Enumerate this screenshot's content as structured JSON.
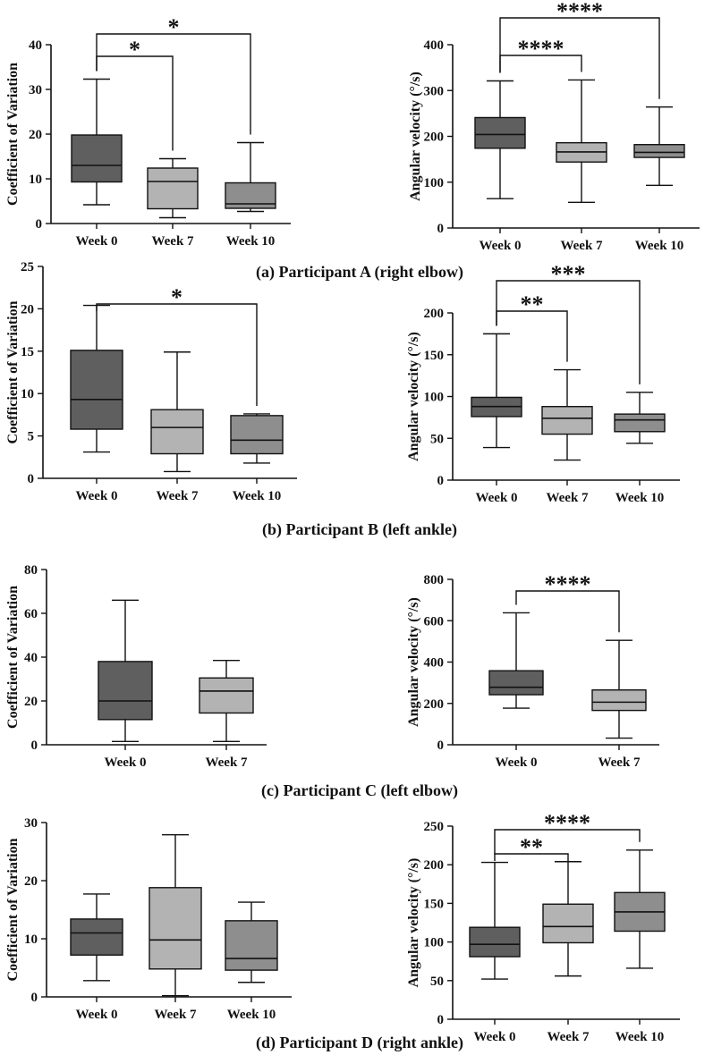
{
  "colors": {
    "week0": "#5f5f5f",
    "week7": "#b3b3b3",
    "week10": "#8e8e8e",
    "line": "#111111"
  },
  "chart_data": [
    {
      "type": "box",
      "caption": "(a) Participant A (right elbow)",
      "ylabel": "Coefficient of Variation",
      "ylim": [
        0,
        40
      ],
      "yticks": [
        0,
        10,
        20,
        30,
        40
      ],
      "categories": [
        "Week 0",
        "Week 7",
        "Week 10"
      ],
      "boxes": [
        {
          "min": 4.2,
          "q1": 9.3,
          "median": 13.0,
          "q3": 19.8,
          "max": 32.3
        },
        {
          "min": 1.3,
          "q1": 3.3,
          "median": 9.4,
          "q3": 12.4,
          "max": 14.5
        },
        {
          "min": 2.7,
          "q1": 3.4,
          "median": 4.4,
          "q3": 9.1,
          "max": 18.1
        }
      ],
      "significance": [
        {
          "from": 0,
          "to": 1,
          "label": "*"
        },
        {
          "from": 0,
          "to": 2,
          "label": "*"
        }
      ]
    },
    {
      "type": "box",
      "caption": "(a) Participant A (right elbow)",
      "ylabel": "Angular velocity (°/s)",
      "ylim": [
        0,
        400
      ],
      "yticks": [
        0,
        100,
        200,
        300,
        400
      ],
      "categories": [
        "Week 0",
        "Week 7",
        "Week 10"
      ],
      "boxes": [
        {
          "min": 64,
          "q1": 174,
          "median": 204,
          "q3": 241,
          "max": 321
        },
        {
          "min": 56,
          "q1": 144,
          "median": 166,
          "q3": 186,
          "max": 323
        },
        {
          "min": 93,
          "q1": 154,
          "median": 165,
          "q3": 182,
          "max": 264
        }
      ],
      "significance": [
        {
          "from": 0,
          "to": 1,
          "label": "****"
        },
        {
          "from": 0,
          "to": 2,
          "label": "****"
        }
      ]
    },
    {
      "type": "box",
      "caption": "(b) Participant B (left ankle)",
      "ylabel": "Coefficient of Variation",
      "ylim": [
        0,
        25
      ],
      "yticks": [
        0,
        5,
        10,
        15,
        20,
        25
      ],
      "categories": [
        "Week 0",
        "Week 7",
        "Week 10"
      ],
      "boxes": [
        {
          "min": 3.1,
          "q1": 5.8,
          "median": 9.3,
          "q3": 15.1,
          "max": 20.4
        },
        {
          "min": 0.8,
          "q1": 2.9,
          "median": 6.0,
          "q3": 8.1,
          "max": 14.9
        },
        {
          "min": 1.8,
          "q1": 2.9,
          "median": 4.5,
          "q3": 7.4,
          "max": 7.6
        }
      ],
      "significance": [
        {
          "from": 0,
          "to": 2,
          "label": "*"
        }
      ]
    },
    {
      "type": "box",
      "caption": "(b) Participant B (left ankle)",
      "ylabel": "Angular velocity (°/s)",
      "ylim": [
        0,
        200
      ],
      "yticks": [
        0,
        50,
        100,
        150,
        200
      ],
      "categories": [
        "Week 0",
        "Week 7",
        "Week 10"
      ],
      "boxes": [
        {
          "min": 39,
          "q1": 76,
          "median": 88,
          "q3": 99,
          "max": 175
        },
        {
          "min": 24,
          "q1": 55,
          "median": 74,
          "q3": 88,
          "max": 132
        },
        {
          "min": 44,
          "q1": 58,
          "median": 72,
          "q3": 79,
          "max": 105
        }
      ],
      "significance": [
        {
          "from": 0,
          "to": 1,
          "label": "**"
        },
        {
          "from": 0,
          "to": 2,
          "label": "***"
        }
      ]
    },
    {
      "type": "box",
      "caption": "(c) Participant C (left elbow)",
      "ylabel": "Coefficient of Variation",
      "ylim": [
        0,
        80
      ],
      "yticks": [
        0,
        20,
        40,
        60,
        80
      ],
      "categories": [
        "Week 0",
        "Week 7"
      ],
      "boxes": [
        {
          "min": 1.5,
          "q1": 11.5,
          "median": 20.0,
          "q3": 38.0,
          "max": 66.0
        },
        {
          "min": 1.5,
          "q1": 14.5,
          "median": 24.5,
          "q3": 30.5,
          "max": 38.5
        }
      ],
      "significance": []
    },
    {
      "type": "box",
      "caption": "(c) Participant C (left elbow)",
      "ylabel": "Angular velocity (°/s)",
      "ylim": [
        0,
        800
      ],
      "yticks": [
        0,
        200,
        400,
        600,
        800
      ],
      "categories": [
        "Week 0",
        "Week 7"
      ],
      "boxes": [
        {
          "min": 177,
          "q1": 242,
          "median": 278,
          "q3": 358,
          "max": 638
        },
        {
          "min": 32,
          "q1": 166,
          "median": 206,
          "q3": 265,
          "max": 505
        }
      ],
      "significance": [
        {
          "from": 0,
          "to": 1,
          "label": "****"
        }
      ]
    },
    {
      "type": "box",
      "caption": "(d) Participant D (right ankle)",
      "ylabel": "Coefficient of Variation",
      "ylim": [
        0,
        30
      ],
      "yticks": [
        0,
        10,
        20,
        30
      ],
      "categories": [
        "Week 0",
        "Week 7",
        "Week 10"
      ],
      "boxes": [
        {
          "min": 2.8,
          "q1": 7.2,
          "median": 11.0,
          "q3": 13.4,
          "max": 17.7
        },
        {
          "min": 0.2,
          "q1": 4.8,
          "median": 9.8,
          "q3": 18.8,
          "max": 27.9
        },
        {
          "min": 2.5,
          "q1": 4.6,
          "median": 6.6,
          "q3": 13.1,
          "max": 16.3
        }
      ],
      "significance": []
    },
    {
      "type": "box",
      "caption": "(d) Participant D (right ankle)",
      "ylabel": "Angular velocity (°/s)",
      "ylim": [
        0,
        250
      ],
      "yticks": [
        0,
        50,
        100,
        150,
        200,
        250
      ],
      "categories": [
        "Week 0",
        "Week 7",
        "Week 10"
      ],
      "boxes": [
        {
          "min": 52,
          "q1": 81,
          "median": 97,
          "q3": 119,
          "max": 203
        },
        {
          "min": 56,
          "q1": 99,
          "median": 120,
          "q3": 149,
          "max": 204
        },
        {
          "min": 66,
          "q1": 114,
          "median": 139,
          "q3": 164,
          "max": 219
        }
      ],
      "significance": [
        {
          "from": 0,
          "to": 1,
          "label": "**"
        },
        {
          "from": 0,
          "to": 2,
          "label": "****"
        }
      ]
    }
  ]
}
